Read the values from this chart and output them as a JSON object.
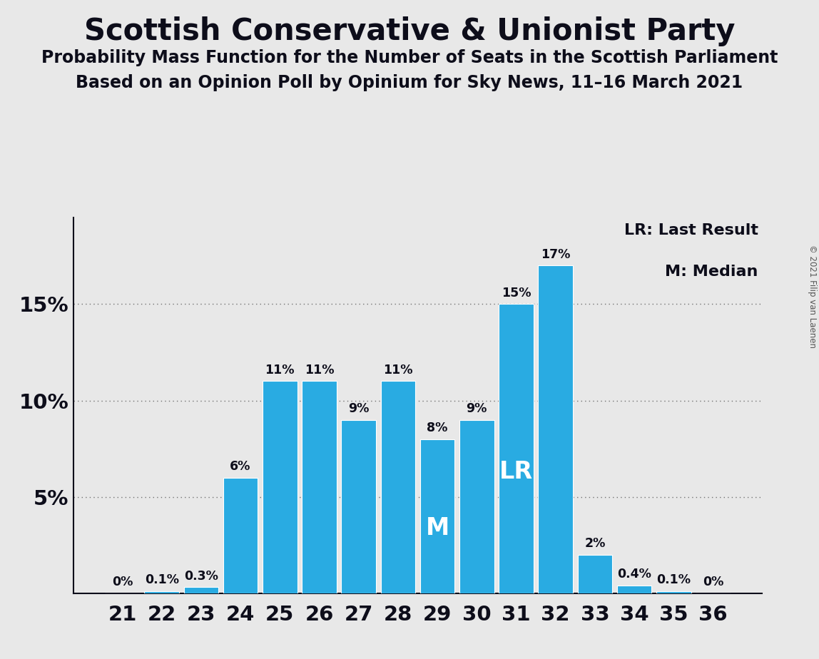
{
  "title": "Scottish Conservative & Unionist Party",
  "subtitle1": "Probability Mass Function for the Number of Seats in the Scottish Parliament",
  "subtitle2": "Based on an Opinion Poll by Opinium for Sky News, 11–16 March 2021",
  "copyright": "© 2021 Filip van Laenen",
  "categories": [
    21,
    22,
    23,
    24,
    25,
    26,
    27,
    28,
    29,
    30,
    31,
    32,
    33,
    34,
    35,
    36
  ],
  "values": [
    0.0,
    0.1,
    0.3,
    6.0,
    11.0,
    11.0,
    9.0,
    11.0,
    8.0,
    9.0,
    15.0,
    17.0,
    2.0,
    0.4,
    0.1,
    0.0
  ],
  "bar_color": "#29ABE2",
  "background_color": "#E8E8E8",
  "label_color": "#0d0d1a",
  "median_seat": 29,
  "lr_seat": 31,
  "legend_lr": "LR: Last Result",
  "legend_m": "M: Median",
  "ylim": [
    0,
    19.5
  ],
  "yticks": [
    0,
    5,
    10,
    15
  ],
  "ylabel_labels": [
    "",
    "5%",
    "10%",
    "15%"
  ]
}
